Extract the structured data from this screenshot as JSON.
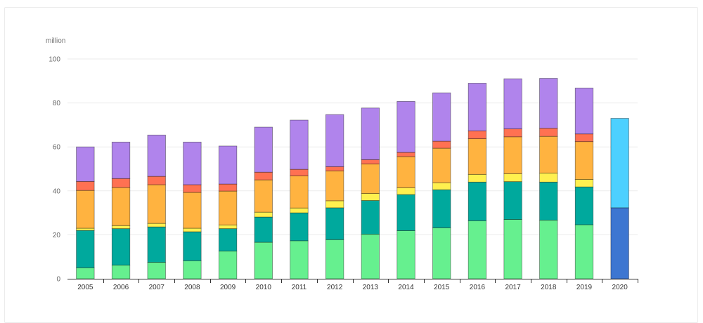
{
  "chart_data": {
    "type": "bar",
    "stacked": true,
    "title": "",
    "xlabel": "",
    "ylabel": "million",
    "ylim": [
      0,
      100
    ],
    "yticks": [
      0,
      20,
      40,
      60,
      80,
      100
    ],
    "grid": true,
    "legend": "none",
    "categories": [
      "2005",
      "2006",
      "2007",
      "2008",
      "2009",
      "2010",
      "2011",
      "2012",
      "2013",
      "2014",
      "2015",
      "2016",
      "2017",
      "2018",
      "2019",
      "2020"
    ],
    "series": [
      {
        "name": "series-1-green",
        "color": "#66f08f",
        "values": [
          5.0,
          6.2,
          7.5,
          8.2,
          12.6,
          16.6,
          17.3,
          17.8,
          20.3,
          21.9,
          23.2,
          26.4,
          27.0,
          26.7,
          24.6,
          0
        ]
      },
      {
        "name": "series-2-teal",
        "color": "#00a99d",
        "values": [
          17.0,
          16.6,
          16.1,
          13.2,
          10.2,
          11.5,
          12.7,
          14.5,
          15.3,
          16.4,
          17.3,
          17.6,
          17.2,
          17.3,
          17.2,
          0
        ]
      },
      {
        "name": "series-3-yellow",
        "color": "#fff04f",
        "values": [
          1.0,
          1.4,
          1.6,
          1.6,
          1.7,
          2.2,
          2.2,
          3.2,
          3.2,
          3.1,
          3.2,
          3.5,
          3.6,
          4.1,
          3.4,
          0
        ]
      },
      {
        "name": "series-4-orange",
        "color": "#ffb340",
        "values": [
          17.2,
          17.3,
          17.6,
          16.3,
          15.4,
          14.7,
          14.6,
          13.6,
          13.4,
          14.2,
          15.7,
          16.2,
          16.8,
          16.7,
          17.2,
          0
        ]
      },
      {
        "name": "series-5-red",
        "color": "#ff7152",
        "values": [
          4.1,
          4.1,
          3.8,
          3.5,
          3.2,
          3.5,
          3.0,
          1.9,
          2.0,
          1.9,
          3.2,
          3.6,
          3.6,
          3.7,
          3.5,
          0
        ]
      },
      {
        "name": "series-6-purple",
        "color": "#b084ec",
        "values": [
          15.7,
          16.6,
          18.8,
          19.4,
          17.3,
          20.5,
          22.4,
          23.7,
          23.5,
          23.2,
          22.0,
          21.7,
          22.8,
          22.7,
          20.9,
          0
        ]
      },
      {
        "name": "series-7-dark-blue",
        "color": "#3d76d1",
        "values": [
          0,
          0,
          0,
          0,
          0,
          0,
          0,
          0,
          0,
          0,
          0,
          0,
          0,
          0,
          0,
          32.3
        ]
      },
      {
        "name": "series-8-light-blue",
        "color": "#4dd0ff",
        "values": [
          0,
          0,
          0,
          0,
          0,
          0,
          0,
          0,
          0,
          0,
          0,
          0,
          0,
          0,
          0,
          40.7
        ]
      }
    ]
  }
}
